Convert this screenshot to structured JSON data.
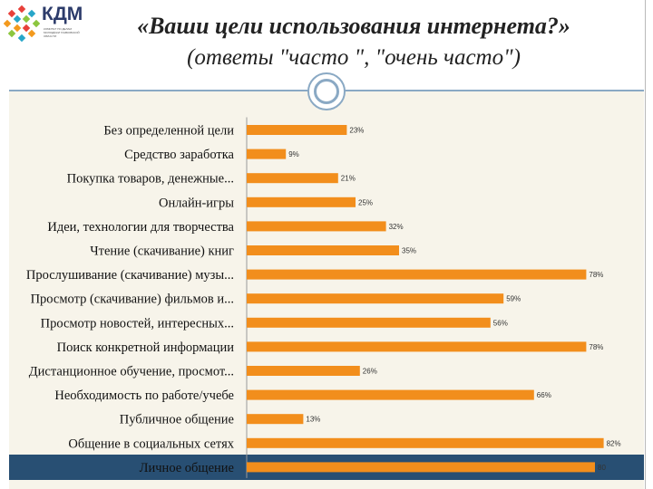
{
  "header": {
    "title": "«Ваши цели использования интернета?»",
    "subtitle": "(ответы \"часто \", \"очень часто\")"
  },
  "logo": {
    "name": "КДМ",
    "tagline": "КОМИТЕТ ПО ДЕЛАМ МОЛОДЁЖИ ТАМБОВСКОЙ ОБЛАСТИ",
    "colors": [
      "#e8403a",
      "#27a6c9",
      "#f39a1e",
      "#8cc63f"
    ]
  },
  "colors": {
    "bar": "#f28e1c",
    "plot_bg": "#f7f4ea",
    "band": "#284f73",
    "divider": "#8aa9c4"
  },
  "chart_data": {
    "type": "bar",
    "orientation": "horizontal",
    "categories": [
      "Без определенной цели",
      "Средство заработка",
      "Покупка товаров, денежные...",
      "Онлайн-игры",
      "Идеи, технологии для творчества",
      "Чтение (скачивание) книг",
      "Прослушивание (скачивание) музы...",
      "Просмотр (скачивание) фильмов и...",
      "Просмотр новостей, интересных...",
      "Поиск конкретной информации",
      "Дистанционное обучение, просмот...",
      "Необходимость по работе/учебе",
      "Публичное общение",
      "Общение в социальных сетях",
      "Личное общение"
    ],
    "values": [
      23,
      9,
      21,
      25,
      32,
      35,
      78,
      59,
      56,
      78,
      26,
      66,
      13,
      82,
      80
    ],
    "value_labels": [
      "23%",
      "9%",
      "21%",
      "25%",
      "32%",
      "35%",
      "78%",
      "59%",
      "56%",
      "78%",
      "26%",
      "66%",
      "13%",
      "82%",
      "80"
    ],
    "xlim": [
      0,
      82
    ],
    "grid": false,
    "legend": "none"
  }
}
